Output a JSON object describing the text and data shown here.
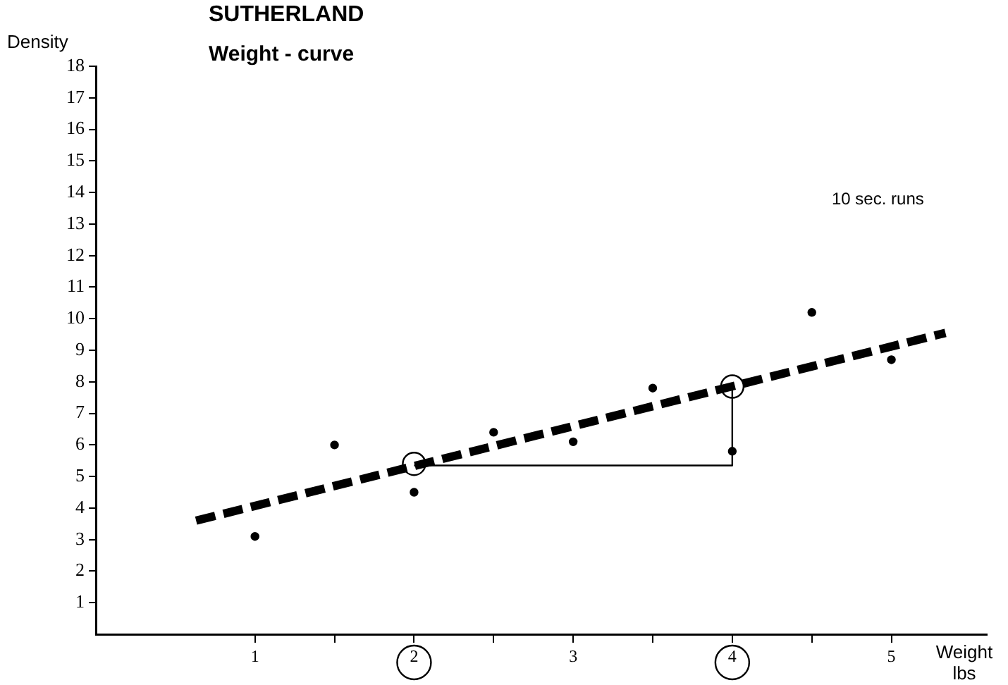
{
  "chart_data": {
    "type": "scatter",
    "title": "SUTHERLAND",
    "subtitle": "Weight - curve",
    "xlabel": "Weight lbs",
    "ylabel": "Density",
    "annotations": [
      "10 sec. runs"
    ],
    "xlim": [
      0,
      5.6
    ],
    "ylim": [
      0,
      18
    ],
    "xticks": [
      1,
      {
        "value": 1.5,
        "label": null
      },
      2,
      {
        "value": 2.5,
        "label": null
      },
      3,
      {
        "value": 3.5,
        "label": null
      },
      4,
      {
        "value": 4.5,
        "label": null
      },
      5
    ],
    "yticks": [
      1,
      2,
      3,
      4,
      5,
      6,
      7,
      8,
      9,
      10,
      11,
      12,
      13,
      14,
      15,
      16,
      17,
      18
    ],
    "grid": false,
    "legend": false,
    "series": [
      {
        "type": "scatter",
        "color": "#000000",
        "marker": "circle",
        "x": [
          1,
          1.5,
          2,
          2.5,
          3,
          3.5,
          4,
          4.5,
          5
        ],
        "values": [
          3.1,
          6.0,
          4.5,
          6.4,
          6.1,
          7.8,
          5.8,
          10.2,
          8.7
        ]
      },
      {
        "type": "scatter",
        "color": "#000000",
        "marker": "circle",
        "x": [
          2,
          4
        ],
        "values": [
          5.4,
          7.85
        ]
      },
      {
        "type": "line",
        "color": "#000000",
        "marker": "none",
        "line_style": "dashed",
        "x": [
          0.63,
          5.34
        ],
        "values": [
          3.6,
          9.55
        ]
      },
      {
        "type": "line",
        "color": "#000000",
        "marker": "none",
        "line_style": "solid",
        "x": [
          2,
          4,
          4
        ],
        "values": [
          5.35,
          5.35,
          7.85
        ]
      }
    ]
  }
}
